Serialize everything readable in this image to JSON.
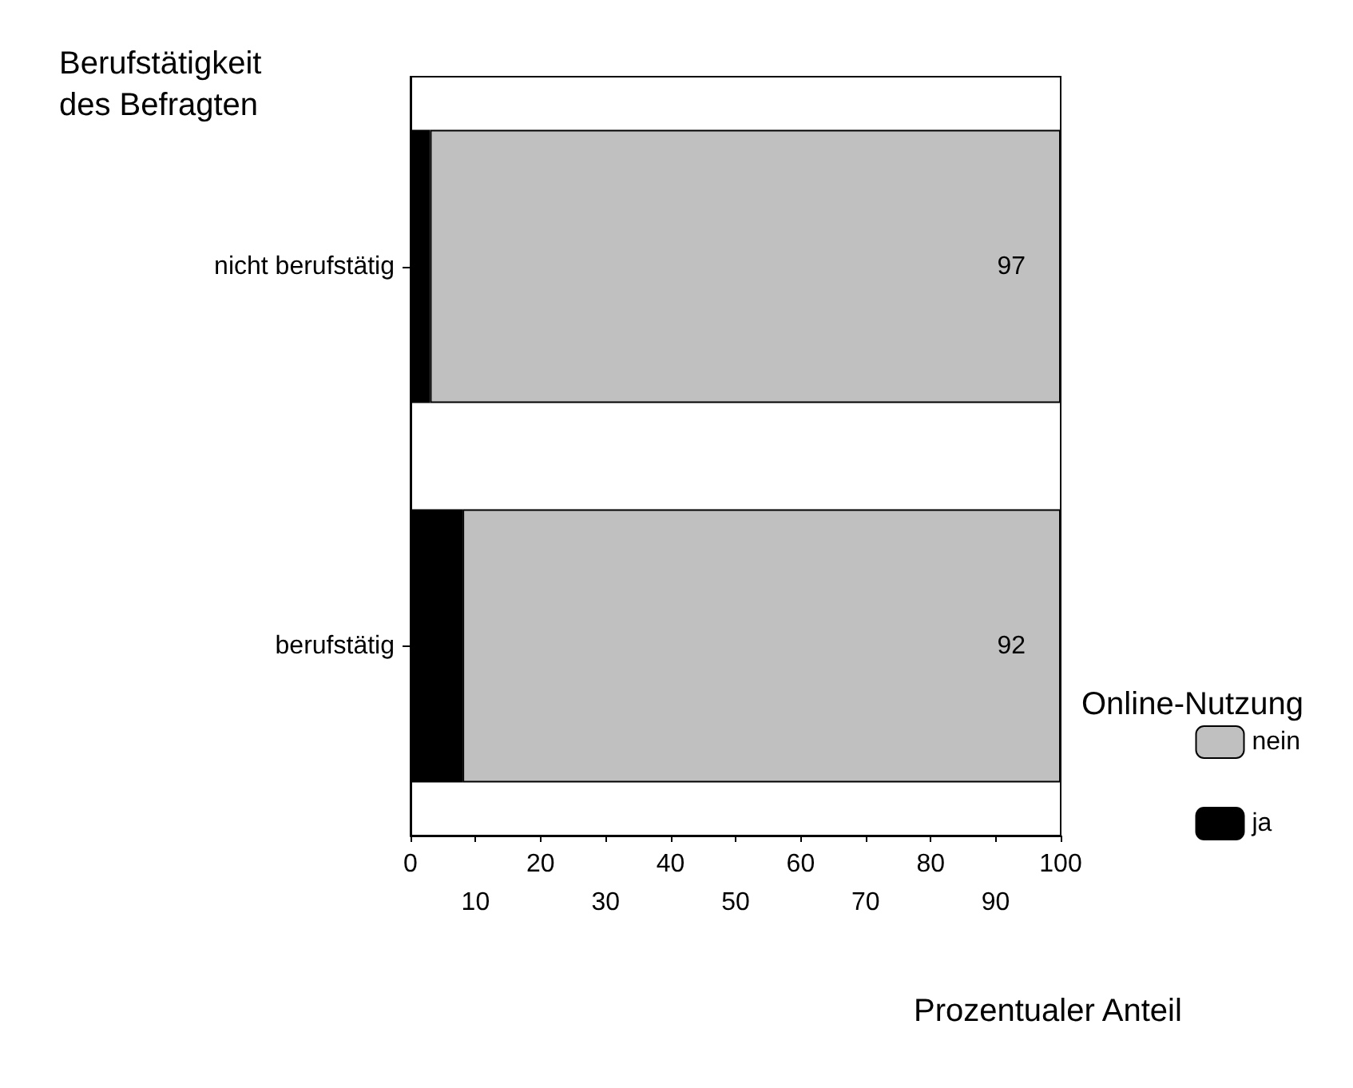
{
  "chart_data": {
    "type": "bar",
    "orientation": "horizontal",
    "stacked": true,
    "categories": [
      "nicht berufstätig",
      "berufstätig"
    ],
    "series": [
      {
        "name": "ja",
        "color": "#000000",
        "values": [
          3,
          8
        ]
      },
      {
        "name": "nein",
        "color": "#c0c0c0",
        "values": [
          97,
          92
        ],
        "value_labels": [
          "97",
          "92"
        ]
      }
    ],
    "xlim": [
      0,
      100
    ],
    "xticks": [
      0,
      20,
      40,
      60,
      80,
      100
    ],
    "x2lim": [
      0,
      100
    ],
    "x2ticks": [
      10,
      30,
      50,
      70,
      90
    ],
    "xlabel": "Prozentualer Anteil",
    "ylabel": "Berufstätigkeit\ndes Befragten",
    "legend_title": "Online-Nutzung",
    "legend": "bottom right",
    "grid": false
  }
}
